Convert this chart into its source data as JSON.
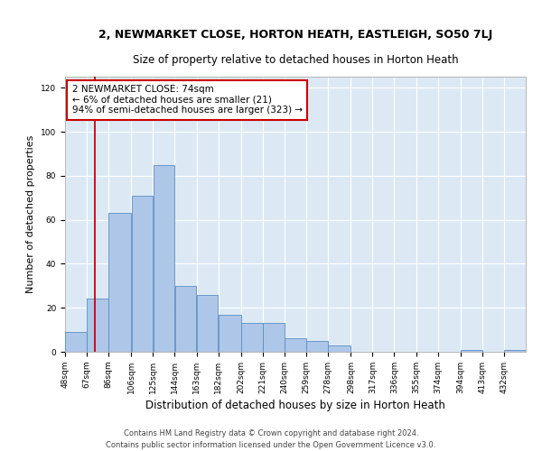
{
  "title1": "2, NEWMARKET CLOSE, HORTON HEATH, EASTLEIGH, SO50 7LJ",
  "title2": "Size of property relative to detached houses in Horton Heath",
  "xlabel": "Distribution of detached houses by size in Horton Heath",
  "ylabel": "Number of detached properties",
  "footnote1": "Contains HM Land Registry data © Crown copyright and database right 2024.",
  "footnote2": "Contains public sector information licensed under the Open Government Licence v3.0.",
  "annotation_line1": "2 NEWMARKET CLOSE: 74sqm",
  "annotation_line2": "← 6% of detached houses are smaller (21)",
  "annotation_line3": "94% of semi-detached houses are larger (323) →",
  "bar_edges": [
    48,
    67,
    86,
    106,
    125,
    144,
    163,
    182,
    202,
    221,
    240,
    259,
    278,
    298,
    317,
    336,
    355,
    374,
    394,
    413,
    432
  ],
  "bar_heights": [
    9,
    24,
    63,
    71,
    85,
    30,
    26,
    17,
    13,
    13,
    6,
    5,
    3,
    0,
    0,
    0,
    0,
    0,
    1,
    0,
    1
  ],
  "bar_color": "#aec6e8",
  "bar_edge_color": "#5a8fc2",
  "vline_color": "#cc0000",
  "vline_x": 74,
  "annotation_box_color": "#cc0000",
  "annotation_box_fill": "#ffffff",
  "tick_labels": [
    "48sqm",
    "67sqm",
    "86sqm",
    "106sqm",
    "125sqm",
    "144sqm",
    "163sqm",
    "182sqm",
    "202sqm",
    "221sqm",
    "240sqm",
    "259sqm",
    "278sqm",
    "298sqm",
    "317sqm",
    "336sqm",
    "355sqm",
    "374sqm",
    "394sqm",
    "413sqm",
    "432sqm"
  ],
  "ylim": [
    0,
    125
  ],
  "yticks": [
    0,
    20,
    40,
    60,
    80,
    100,
    120
  ],
  "bg_color": "#dce9f5",
  "fig_bg": "#ffffff",
  "title1_fontsize": 9,
  "title2_fontsize": 8.5,
  "xlabel_fontsize": 8.5,
  "ylabel_fontsize": 8,
  "tick_fontsize": 6.5,
  "footnote_fontsize": 6,
  "annotation_fontsize": 7.5
}
